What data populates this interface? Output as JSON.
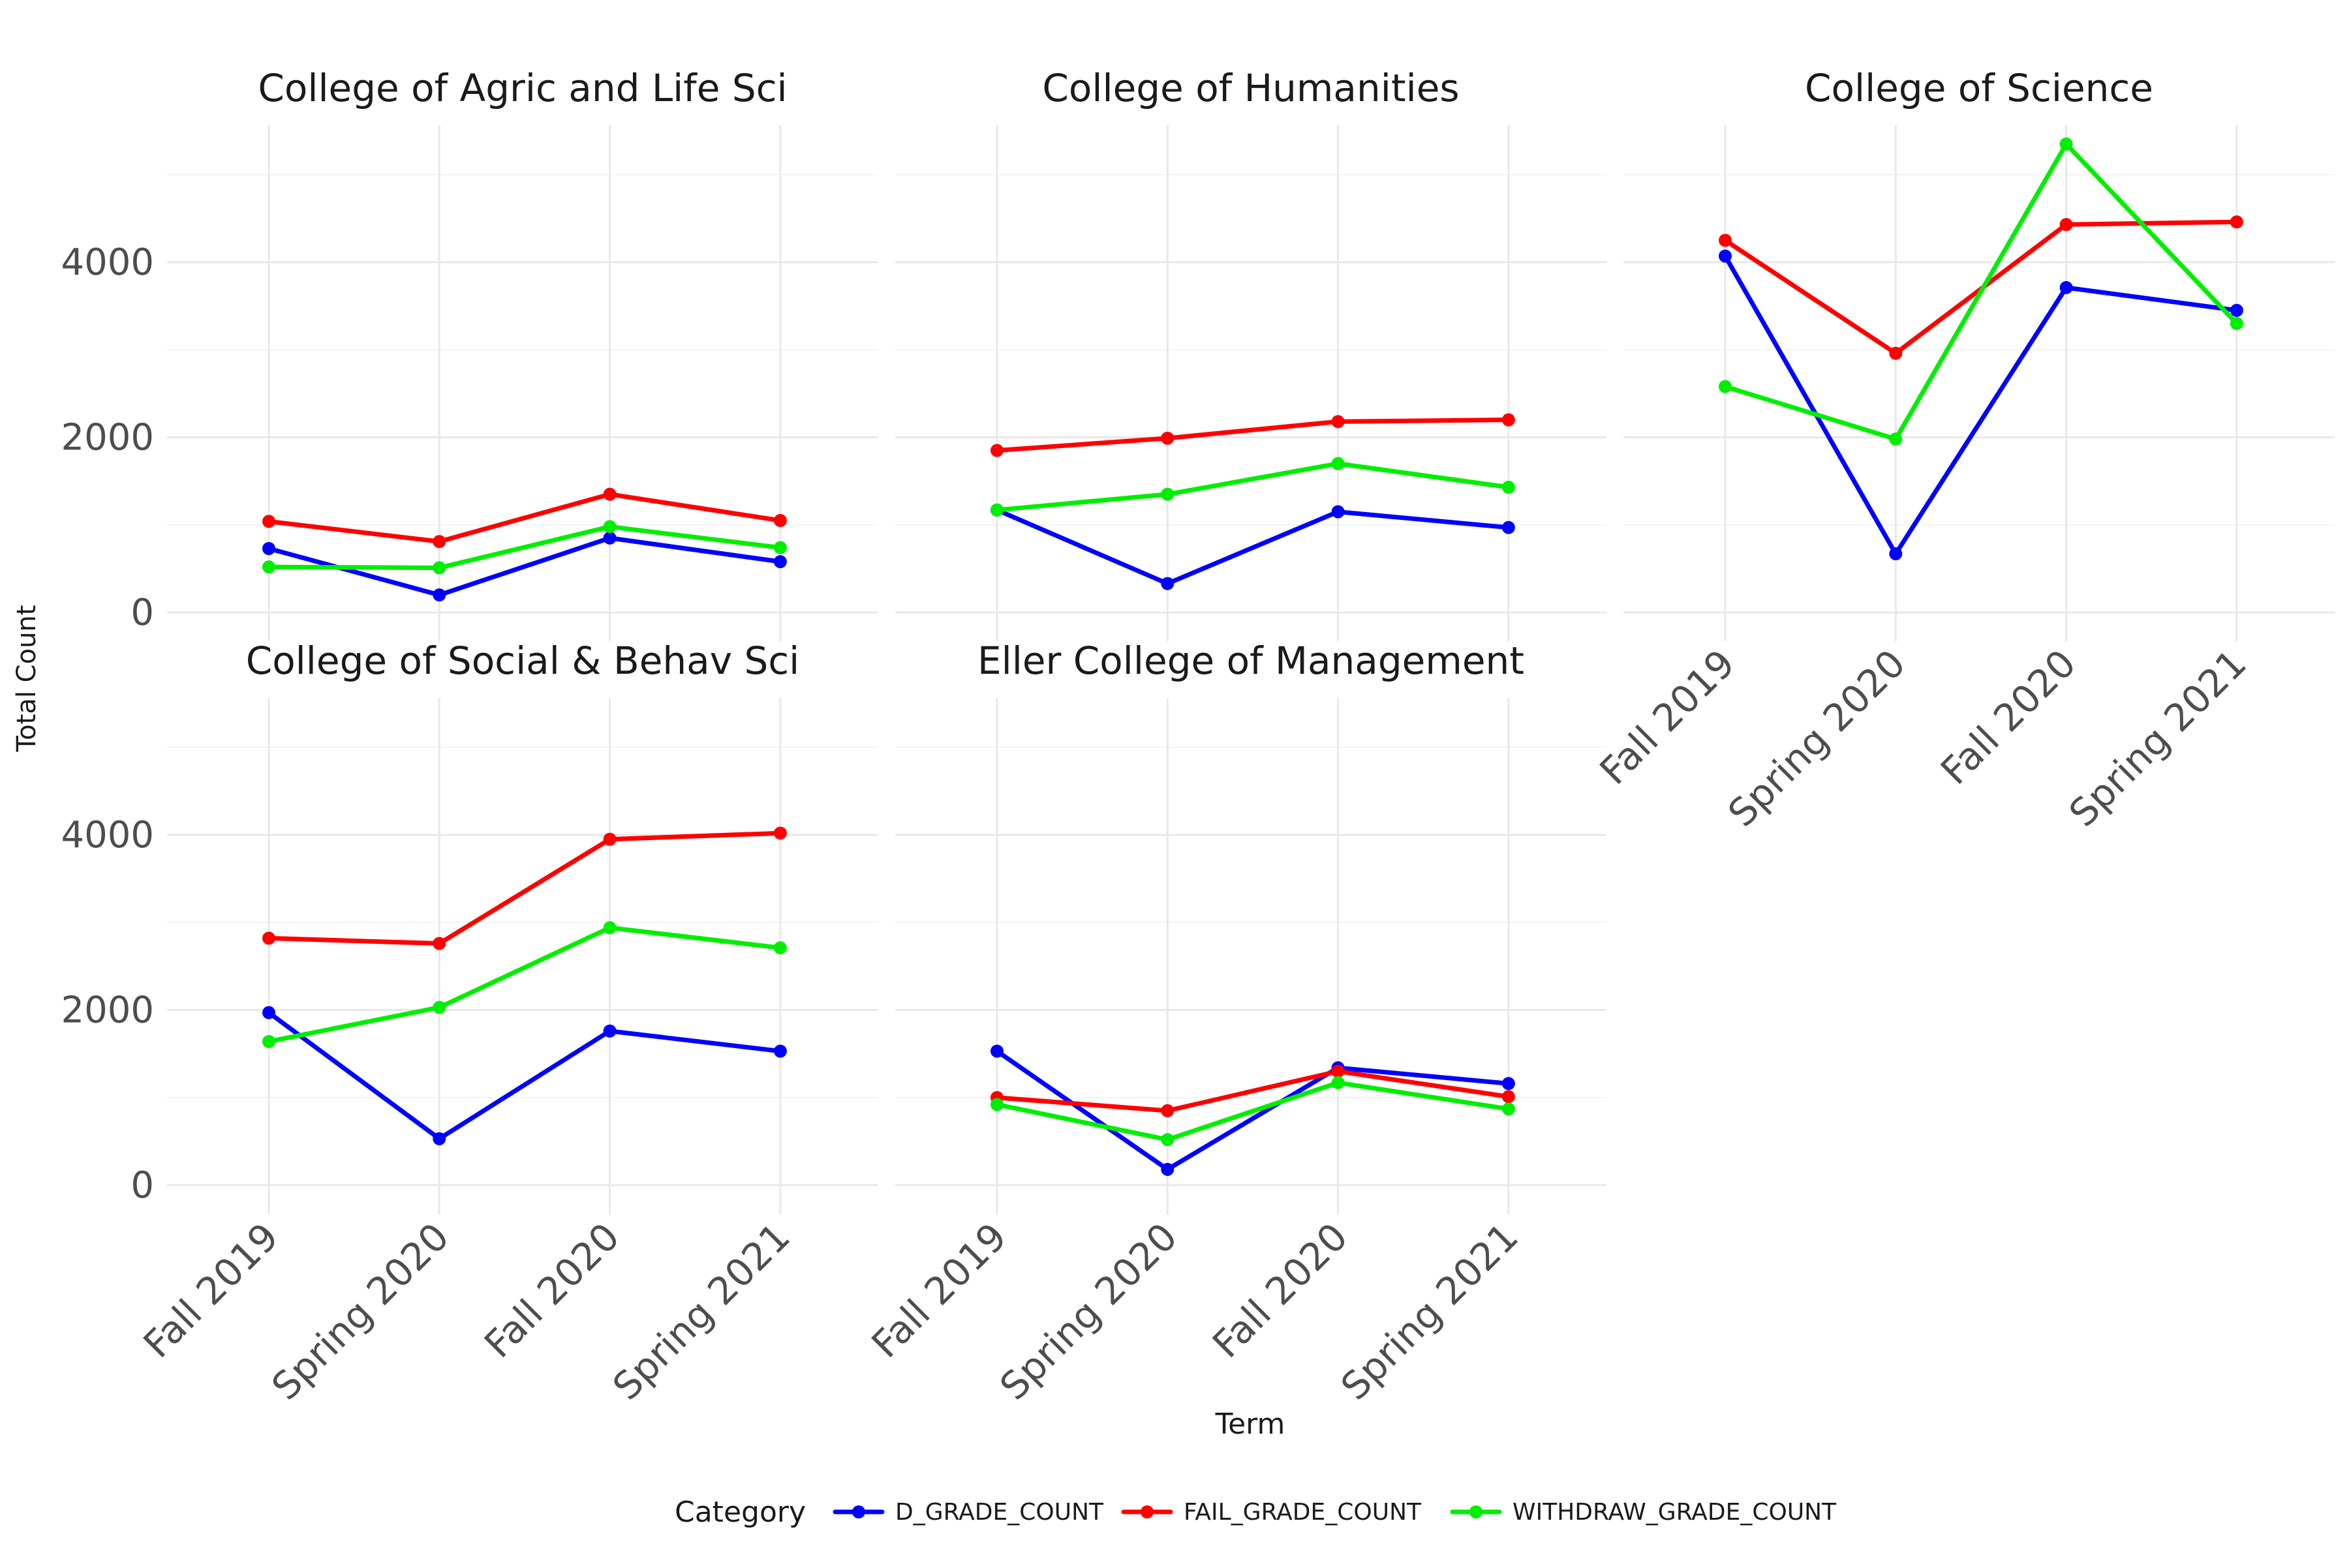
{
  "chart_data": {
    "type": "line",
    "xlabel": "Term",
    "ylabel": "Total Count",
    "x": [
      "Fall 2019",
      "Spring 2020",
      "Fall 2020",
      "Spring 2021"
    ],
    "ylim": [
      0,
      5600
    ],
    "yticks": [
      0,
      2000,
      4000
    ],
    "grid": true,
    "legend": {
      "title": "Category",
      "position": "bottom",
      "entries": [
        "D_GRADE_COUNT",
        "FAIL_GRADE_COUNT",
        "WITHDRAW_GRADE_COUNT"
      ]
    },
    "colors": {
      "D_GRADE_COUNT": "#0000ff",
      "FAIL_GRADE_COUNT": "#ff0000",
      "WITHDRAW_GRADE_COUNT": "#00ee00"
    },
    "panels": [
      {
        "title": "College of Agric and Life Sci",
        "series": [
          {
            "name": "D_GRADE_COUNT",
            "values": [
              730,
              200,
              850,
              580
            ]
          },
          {
            "name": "FAIL_GRADE_COUNT",
            "values": [
              1040,
              810,
              1350,
              1050
            ]
          },
          {
            "name": "WITHDRAW_GRADE_COUNT",
            "values": [
              520,
              510,
              980,
              740
            ]
          }
        ]
      },
      {
        "title": "College of Humanities",
        "series": [
          {
            "name": "D_GRADE_COUNT",
            "values": [
              1170,
              330,
              1150,
              970
            ]
          },
          {
            "name": "FAIL_GRADE_COUNT",
            "values": [
              1850,
              1990,
              2180,
              2200
            ]
          },
          {
            "name": "WITHDRAW_GRADE_COUNT",
            "values": [
              1170,
              1350,
              1700,
              1430
            ]
          }
        ]
      },
      {
        "title": "College of Science",
        "series": [
          {
            "name": "D_GRADE_COUNT",
            "values": [
              4070,
              670,
              3710,
              3450
            ]
          },
          {
            "name": "FAIL_GRADE_COUNT",
            "values": [
              4250,
              2960,
              4430,
              4460
            ]
          },
          {
            "name": "WITHDRAW_GRADE_COUNT",
            "values": [
              2580,
              1980,
              5350,
              3300
            ]
          }
        ]
      },
      {
        "title": "College of Social & Behav Sci",
        "series": [
          {
            "name": "D_GRADE_COUNT",
            "values": [
              1970,
              530,
              1760,
              1530
            ]
          },
          {
            "name": "FAIL_GRADE_COUNT",
            "values": [
              2820,
              2760,
              3950,
              4020
            ]
          },
          {
            "name": "WITHDRAW_GRADE_COUNT",
            "values": [
              1640,
              2030,
              2940,
              2710
            ]
          }
        ]
      },
      {
        "title": "Eller College of Management",
        "series": [
          {
            "name": "D_GRADE_COUNT",
            "values": [
              1530,
              180,
              1340,
              1160
            ]
          },
          {
            "name": "FAIL_GRADE_COUNT",
            "values": [
              1000,
              850,
              1300,
              1010
            ]
          },
          {
            "name": "WITHDRAW_GRADE_COUNT",
            "values": [
              920,
              520,
              1170,
              870
            ]
          }
        ]
      }
    ]
  }
}
